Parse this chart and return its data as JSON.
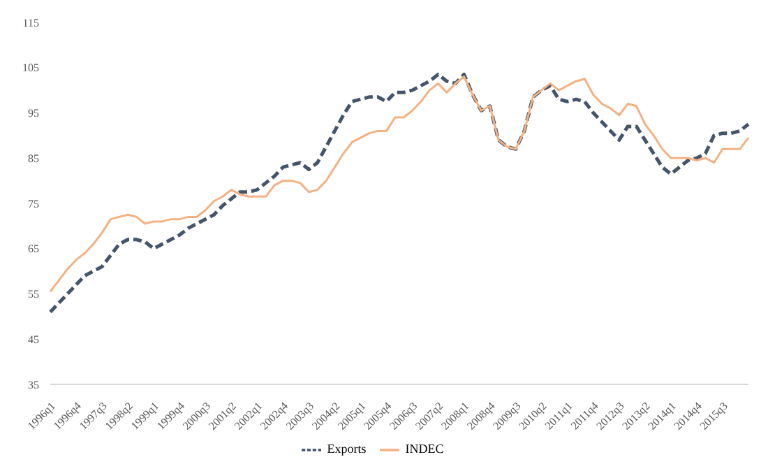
{
  "chart_data": {
    "type": "line",
    "categories": [
      "1996q1",
      null,
      null,
      "1996q4",
      null,
      null,
      "1997q3",
      null,
      null,
      "1998q2",
      null,
      null,
      "1999q1",
      null,
      null,
      "1999q4",
      null,
      null,
      "2000q3",
      null,
      null,
      "2001q2",
      null,
      null,
      "2002q1",
      null,
      null,
      "2002q4",
      null,
      null,
      "2003q3",
      null,
      null,
      "2004q2",
      null,
      null,
      "2005q1",
      null,
      null,
      "2005q4",
      null,
      null,
      "2006q3",
      null,
      null,
      "2007q2",
      null,
      null,
      "2008q1",
      null,
      null,
      "2008q4",
      null,
      null,
      "2009q3",
      null,
      null,
      "2010q2",
      null,
      null,
      "2011q1",
      null,
      null,
      "2011q4",
      null,
      null,
      "2012q3",
      null,
      null,
      "2013q2",
      null,
      null,
      "2014q1",
      null,
      null,
      "2014q4",
      null,
      null,
      "2015q3",
      null,
      null,
      null
    ],
    "series": [
      {
        "name": "Exports",
        "color": "#44546a",
        "line_style": "dashed",
        "values": [
          51,
          53,
          55,
          57,
          59,
          60,
          61,
          63.5,
          66,
          67,
          67,
          66.5,
          65,
          66,
          67,
          68,
          69.5,
          70.5,
          71.5,
          72.5,
          74.5,
          76,
          77.5,
          77.5,
          78,
          79.5,
          81,
          83,
          83.5,
          84,
          82.5,
          84,
          87.5,
          91,
          94.5,
          97.5,
          98,
          98.5,
          98.5,
          97.5,
          99.5,
          99.5,
          100,
          101,
          102,
          103.5,
          102,
          101.5,
          103.5,
          99,
          95.5,
          96.5,
          89,
          87.5,
          87,
          91,
          98.5,
          100,
          101,
          98,
          97.5,
          98,
          97.5,
          95,
          93,
          91,
          89,
          92,
          92,
          89,
          86,
          83,
          81.5,
          83,
          84.5,
          85,
          86,
          90,
          90.5,
          90.5,
          91,
          92.5
        ]
      },
      {
        "name": "INDEC",
        "color": "#f4b183",
        "line_style": "solid",
        "values": [
          55.5,
          58,
          60.5,
          62.5,
          64,
          66,
          68.5,
          71.5,
          72,
          72.5,
          72,
          70.5,
          71,
          71,
          71.5,
          71.5,
          72,
          72,
          73.5,
          75.5,
          76.5,
          78,
          77,
          76.5,
          76.5,
          76.5,
          79,
          80,
          80,
          79.5,
          77.5,
          78,
          80,
          83,
          86,
          88.5,
          89.5,
          90.5,
          91,
          91,
          94,
          94,
          95.5,
          97.5,
          100,
          101.5,
          99.5,
          101.5,
          103,
          99,
          95.5,
          96.5,
          89,
          87.5,
          87,
          91,
          98.5,
          100,
          101.5,
          100,
          101,
          102,
          102.5,
          99,
          97,
          96,
          94.5,
          97,
          96.5,
          92.5,
          90,
          87,
          85,
          85,
          85,
          84.5,
          85,
          84,
          87,
          87,
          87,
          89.5
        ]
      }
    ],
    "ylim": [
      35,
      115
    ],
    "yticks": [
      35,
      45,
      55,
      65,
      75,
      85,
      95,
      105,
      115
    ],
    "grid": false,
    "legend": "bottom"
  }
}
